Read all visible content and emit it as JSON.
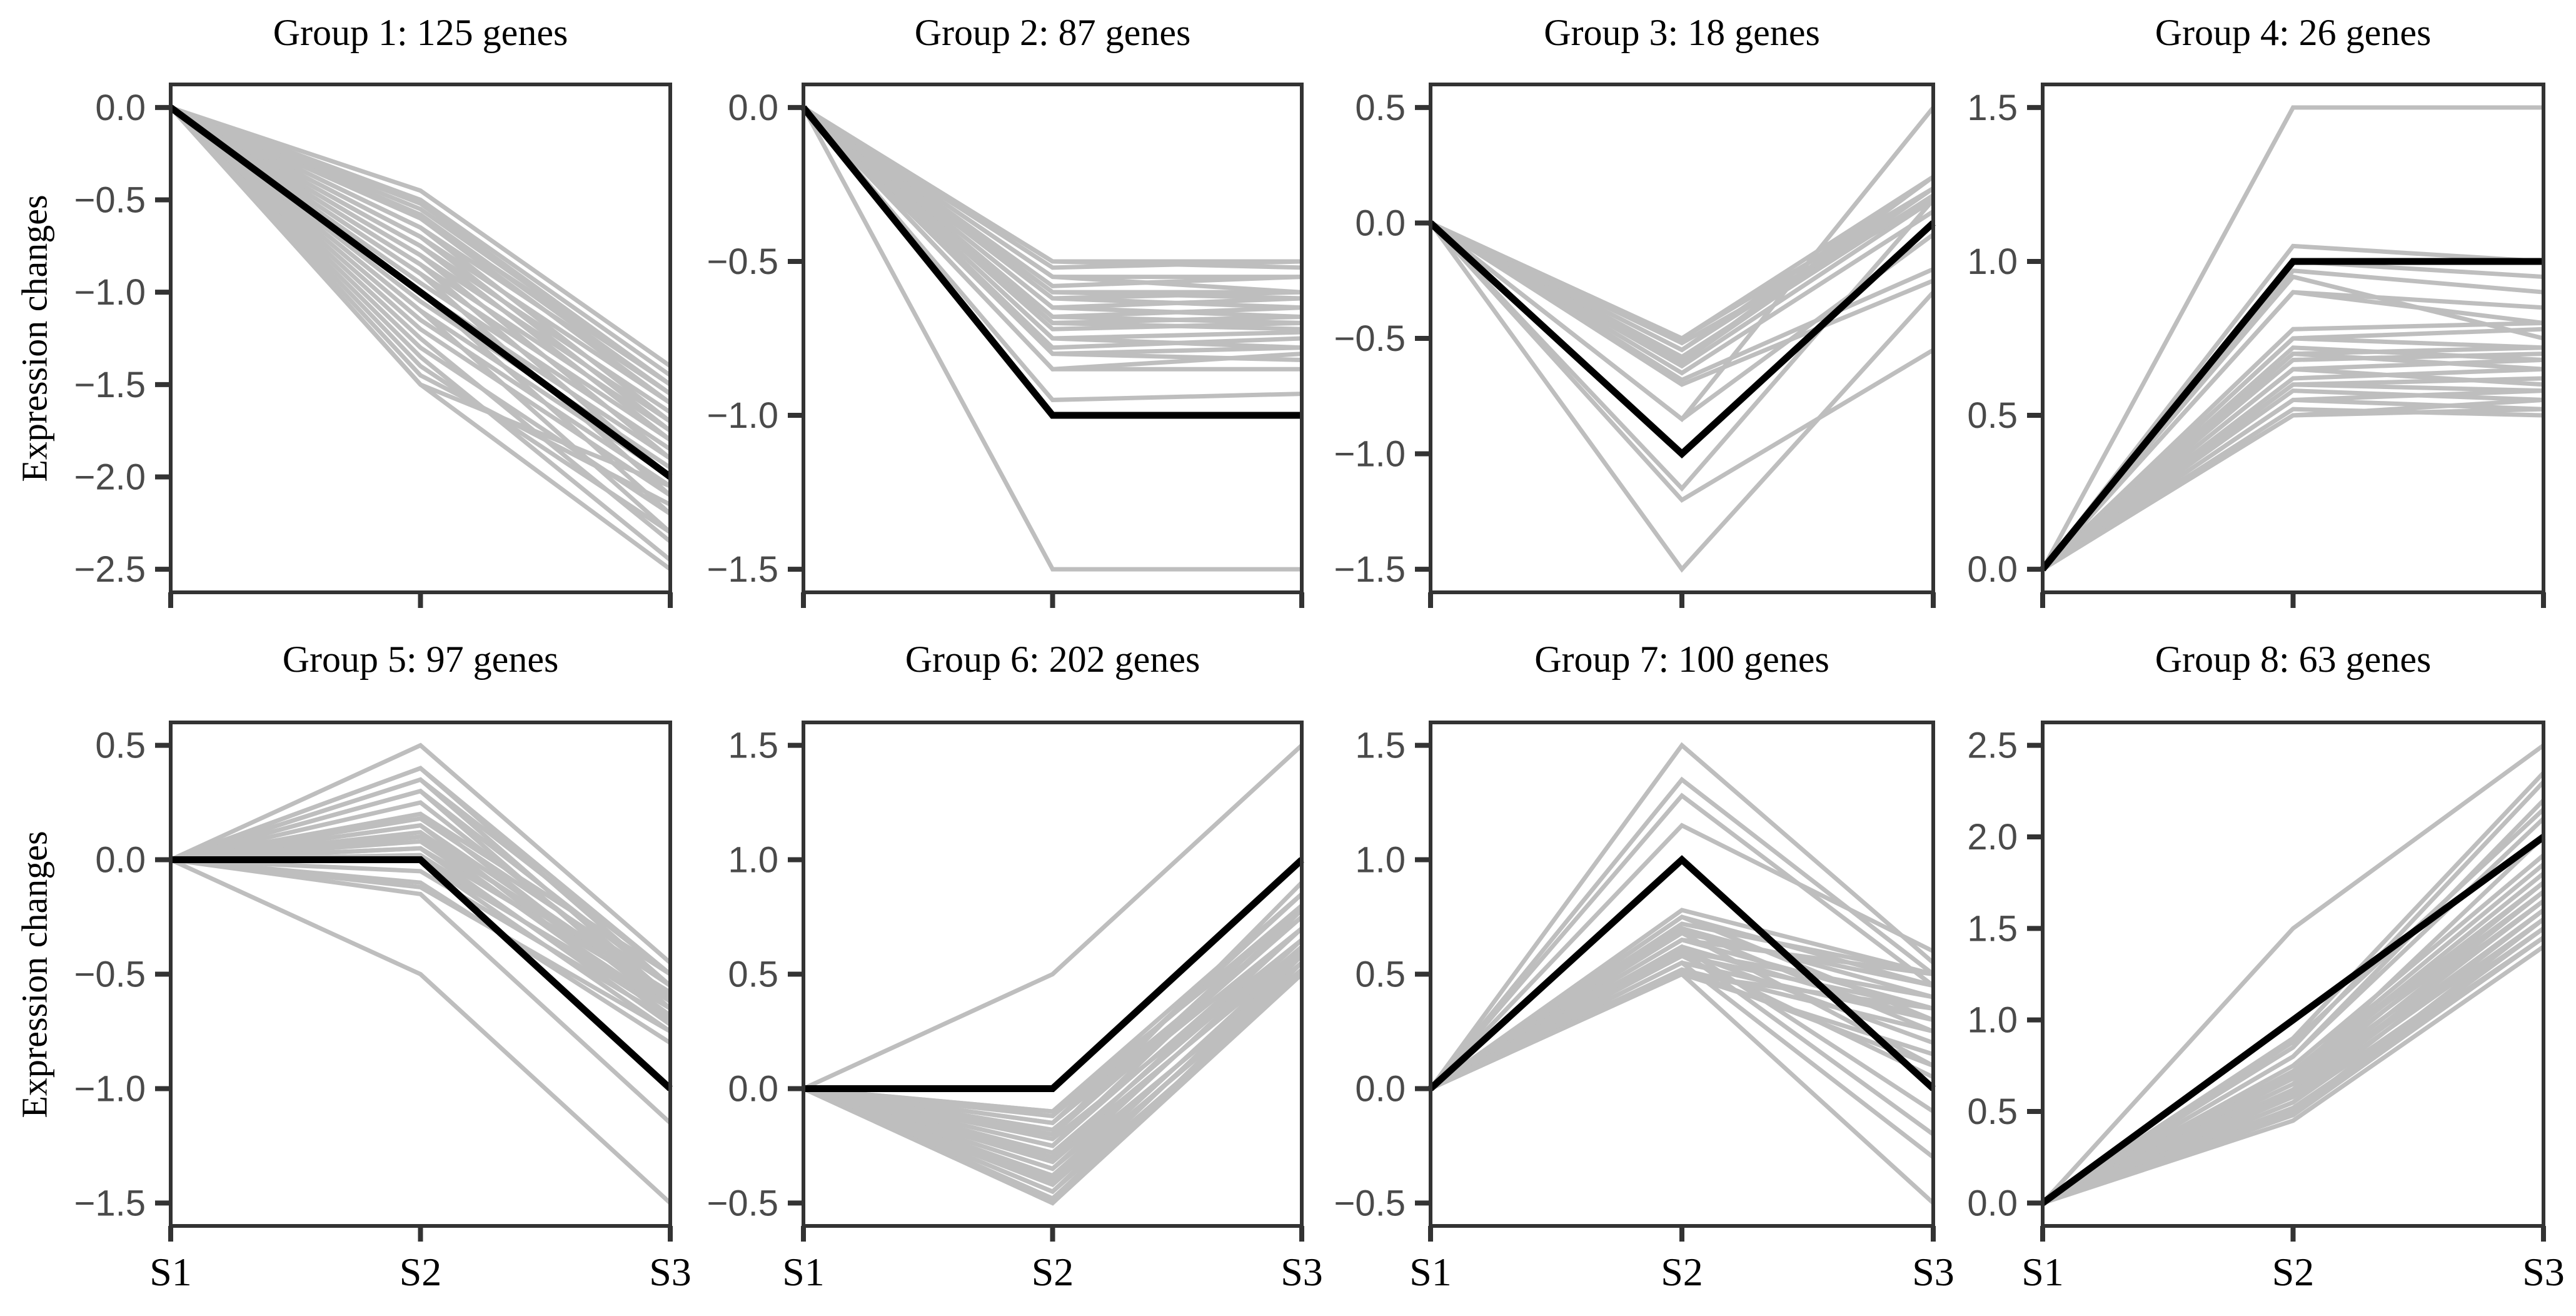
{
  "figure": {
    "y_axis_label": "Expression changes",
    "x_categories": [
      "S1",
      "S2",
      "S3"
    ],
    "colors": {
      "gene_line": "#bebebe",
      "consensus_line": "#000000",
      "axis": "#333333",
      "tick_label": "#4a4a4a",
      "title": "#000000",
      "background": "#ffffff"
    }
  },
  "chart_data": [
    {
      "type": "line",
      "title": "Group 1: 125 genes",
      "group": "Group 1",
      "n_genes": 125,
      "x": [
        "S1",
        "S2",
        "S3"
      ],
      "ylim": [
        -2.625,
        0.125
      ],
      "yticks": [
        0.0,
        -0.5,
        -1.0,
        -1.5,
        -2.0,
        -2.5
      ],
      "consensus": [
        0,
        -1,
        -2
      ],
      "genes": [
        [
          0,
          -0.45,
          -1.4
        ],
        [
          0,
          -0.5,
          -1.45
        ],
        [
          0,
          -0.52,
          -1.5
        ],
        [
          0,
          -0.55,
          -1.5
        ],
        [
          0,
          -0.58,
          -1.55
        ],
        [
          0,
          -0.6,
          -1.5
        ],
        [
          0,
          -0.6,
          -1.6
        ],
        [
          0,
          -0.65,
          -1.55
        ],
        [
          0,
          -0.65,
          -1.7
        ],
        [
          0,
          -0.7,
          -1.6
        ],
        [
          0,
          -0.7,
          -1.75
        ],
        [
          0,
          -0.75,
          -1.65
        ],
        [
          0,
          -0.75,
          -1.8
        ],
        [
          0,
          -0.8,
          -1.7
        ],
        [
          0,
          -0.8,
          -1.9
        ],
        [
          0,
          -0.85,
          -1.75
        ],
        [
          0,
          -0.85,
          -2.0
        ],
        [
          0,
          -0.9,
          -1.8
        ],
        [
          0,
          -0.9,
          -2.1
        ],
        [
          0,
          -0.95,
          -1.85
        ],
        [
          0,
          -1.0,
          -1.9
        ],
        [
          0,
          -1.0,
          -2.2
        ],
        [
          0,
          -1.05,
          -1.95
        ],
        [
          0,
          -1.1,
          -2.0
        ],
        [
          0,
          -1.1,
          -2.3
        ],
        [
          0,
          -1.15,
          -2.05
        ],
        [
          0,
          -1.2,
          -2.1
        ],
        [
          0,
          -1.25,
          -2.35
        ],
        [
          0,
          -1.3,
          -2.2
        ],
        [
          0,
          -1.35,
          -2.45
        ],
        [
          0,
          -1.4,
          -2.3
        ],
        [
          0,
          -1.45,
          -2.15
        ],
        [
          0,
          -1.5,
          -2.5
        ],
        [
          0,
          -1.5,
          -2.05
        ]
      ]
    },
    {
      "type": "line",
      "title": "Group 2: 87 genes",
      "group": "Group 2",
      "n_genes": 87,
      "x": [
        "S1",
        "S2",
        "S3"
      ],
      "ylim": [
        -1.575,
        0.075
      ],
      "yticks": [
        0.0,
        -0.5,
        -1.0,
        -1.5
      ],
      "consensus": [
        0,
        -1,
        -1
      ],
      "genes": [
        [
          0,
          -0.5,
          -0.5
        ],
        [
          0,
          -0.5,
          -0.52
        ],
        [
          0,
          -0.52,
          -0.5
        ],
        [
          0,
          -0.55,
          -0.55
        ],
        [
          0,
          -0.55,
          -0.6
        ],
        [
          0,
          -0.58,
          -0.55
        ],
        [
          0,
          -0.6,
          -0.6
        ],
        [
          0,
          -0.6,
          -0.62
        ],
        [
          0,
          -0.62,
          -0.6
        ],
        [
          0,
          -0.62,
          -0.65
        ],
        [
          0,
          -0.65,
          -0.62
        ],
        [
          0,
          -0.65,
          -0.68
        ],
        [
          0,
          -0.68,
          -0.65
        ],
        [
          0,
          -0.68,
          -0.7
        ],
        [
          0,
          -0.7,
          -0.68
        ],
        [
          0,
          -0.7,
          -0.72
        ],
        [
          0,
          -0.72,
          -0.7
        ],
        [
          0,
          -0.75,
          -0.73
        ],
        [
          0,
          -0.75,
          -0.78
        ],
        [
          0,
          -0.78,
          -0.75
        ],
        [
          0,
          -0.8,
          -0.78
        ],
        [
          0,
          -0.8,
          -0.82
        ],
        [
          0,
          -0.85,
          -0.8
        ],
        [
          0,
          -0.85,
          -0.85
        ],
        [
          0,
          -0.95,
          -0.93
        ],
        [
          0,
          -1.5,
          -1.5
        ]
      ]
    },
    {
      "type": "line",
      "title": "Group 3: 18 genes",
      "group": "Group 3",
      "n_genes": 18,
      "x": [
        "S1",
        "S2",
        "S3"
      ],
      "ylim": [
        -1.6,
        0.6
      ],
      "yticks": [
        0.5,
        0.0,
        -0.5,
        -1.0,
        -1.5
      ],
      "consensus": [
        0,
        -1,
        0
      ],
      "genes": [
        [
          0,
          -0.5,
          0.15
        ],
        [
          0,
          -0.5,
          0.2
        ],
        [
          0,
          -0.52,
          0.1
        ],
        [
          0,
          -0.55,
          0.15
        ],
        [
          0,
          -0.55,
          0.2
        ],
        [
          0,
          -0.58,
          0.12
        ],
        [
          0,
          -0.6,
          0.15
        ],
        [
          0,
          -0.6,
          0.2
        ],
        [
          0,
          -0.62,
          0.1
        ],
        [
          0,
          -0.65,
          0.05
        ],
        [
          0,
          -0.68,
          -0.2
        ],
        [
          0,
          -0.7,
          -0.25
        ],
        [
          0,
          -0.85,
          0.5
        ],
        [
          0,
          -0.85,
          -0.05
        ],
        [
          0,
          -1.15,
          0.1
        ],
        [
          0,
          -1.2,
          -0.55
        ],
        [
          0,
          -1.5,
          -0.3
        ]
      ]
    },
    {
      "type": "line",
      "title": "Group 4: 26 genes",
      "group": "Group 4",
      "n_genes": 26,
      "x": [
        "S1",
        "S2",
        "S3"
      ],
      "ylim": [
        -0.075,
        1.575
      ],
      "yticks": [
        0.0,
        0.5,
        1.0,
        1.5
      ],
      "consensus": [
        0,
        1,
        1
      ],
      "genes": [
        [
          0,
          1.05,
          1.0
        ],
        [
          0,
          1.0,
          0.95
        ],
        [
          0,
          0.97,
          0.9
        ],
        [
          0,
          0.95,
          0.75
        ],
        [
          0,
          0.9,
          0.85
        ],
        [
          0,
          0.9,
          0.8
        ],
        [
          0,
          0.78,
          0.8
        ],
        [
          0,
          0.75,
          0.72
        ],
        [
          0,
          0.75,
          0.78
        ],
        [
          0,
          0.72,
          0.68
        ],
        [
          0,
          0.7,
          0.65
        ],
        [
          0,
          0.7,
          0.72
        ],
        [
          0,
          0.68,
          0.7
        ],
        [
          0,
          0.65,
          0.6
        ],
        [
          0,
          0.65,
          0.68
        ],
        [
          0,
          0.62,
          0.65
        ],
        [
          0,
          0.6,
          0.58
        ],
        [
          0,
          0.6,
          0.62
        ],
        [
          0,
          0.58,
          0.55
        ],
        [
          0,
          0.55,
          0.52
        ],
        [
          0,
          0.55,
          0.58
        ],
        [
          0,
          0.52,
          0.5
        ],
        [
          0,
          0.5,
          0.52
        ],
        [
          0,
          0.5,
          0.55
        ],
        [
          0,
          1.5,
          1.5
        ]
      ]
    },
    {
      "type": "line",
      "title": "Group 5: 97 genes",
      "group": "Group 5",
      "n_genes": 97,
      "x": [
        "S1",
        "S2",
        "S3"
      ],
      "ylim": [
        -1.6,
        0.6
      ],
      "yticks": [
        0.5,
        0.0,
        -0.5,
        -1.0,
        -1.5
      ],
      "consensus": [
        0,
        0,
        -1
      ],
      "genes": [
        [
          0,
          0.5,
          -0.45
        ],
        [
          0,
          0.4,
          -0.5
        ],
        [
          0,
          0.4,
          -0.55
        ],
        [
          0,
          0.35,
          -0.5
        ],
        [
          0,
          0.35,
          -0.6
        ],
        [
          0,
          0.3,
          -0.55
        ],
        [
          0,
          0.3,
          -0.65
        ],
        [
          0,
          0.25,
          -0.6
        ],
        [
          0,
          0.2,
          -0.5
        ],
        [
          0,
          0.2,
          -0.65
        ],
        [
          0,
          0.18,
          -0.55
        ],
        [
          0,
          0.15,
          -0.6
        ],
        [
          0,
          0.15,
          -0.7
        ],
        [
          0,
          0.12,
          -0.62
        ],
        [
          0,
          0.1,
          -0.58
        ],
        [
          0,
          0.1,
          -0.68
        ],
        [
          0,
          0.08,
          -0.65
        ],
        [
          0,
          0.05,
          -0.6
        ],
        [
          0,
          0.05,
          -0.72
        ],
        [
          0,
          0.02,
          -0.68
        ],
        [
          0,
          0.0,
          -0.65
        ],
        [
          0,
          0.0,
          -0.75
        ],
        [
          0,
          -0.05,
          -0.7
        ],
        [
          0,
          -0.1,
          -0.8
        ],
        [
          0,
          -0.12,
          -0.75
        ],
        [
          0,
          -0.15,
          -1.15
        ],
        [
          0,
          -0.5,
          -1.5
        ]
      ]
    },
    {
      "type": "line",
      "title": "Group 6: 202 genes",
      "group": "Group 6",
      "n_genes": 202,
      "x": [
        "S1",
        "S2",
        "S3"
      ],
      "ylim": [
        -0.6,
        1.6
      ],
      "yticks": [
        1.5,
        1.0,
        0.5,
        0.0,
        -0.5
      ],
      "consensus": [
        0,
        0,
        1
      ],
      "genes": [
        [
          0,
          0.5,
          1.5
        ],
        [
          0,
          -0.1,
          0.85
        ],
        [
          0,
          -0.12,
          0.8
        ],
        [
          0,
          -0.15,
          0.75
        ],
        [
          0,
          -0.15,
          0.85
        ],
        [
          0,
          -0.18,
          0.7
        ],
        [
          0,
          -0.2,
          0.75
        ],
        [
          0,
          -0.2,
          0.8
        ],
        [
          0,
          -0.22,
          0.65
        ],
        [
          0,
          -0.25,
          0.7
        ],
        [
          0,
          -0.25,
          0.78
        ],
        [
          0,
          -0.28,
          0.65
        ],
        [
          0,
          -0.3,
          0.6
        ],
        [
          0,
          -0.3,
          0.7
        ],
        [
          0,
          -0.32,
          0.62
        ],
        [
          0,
          -0.35,
          0.55
        ],
        [
          0,
          -0.35,
          0.65
        ],
        [
          0,
          -0.38,
          0.58
        ],
        [
          0,
          -0.4,
          0.52
        ],
        [
          0,
          -0.4,
          0.6
        ],
        [
          0,
          -0.42,
          0.55
        ],
        [
          0,
          -0.45,
          0.5
        ],
        [
          0,
          -0.45,
          0.58
        ],
        [
          0,
          -0.48,
          0.52
        ],
        [
          0,
          -0.5,
          0.5
        ],
        [
          0,
          -0.5,
          0.55
        ],
        [
          0,
          -0.2,
          0.9
        ],
        [
          0,
          -0.1,
          0.78
        ]
      ]
    },
    {
      "type": "line",
      "title": "Group 7: 100 genes",
      "group": "Group 7",
      "n_genes": 100,
      "x": [
        "S1",
        "S2",
        "S3"
      ],
      "ylim": [
        -0.6,
        1.6
      ],
      "yticks": [
        1.5,
        1.0,
        0.5,
        0.0,
        -0.5
      ],
      "consensus": [
        0,
        1,
        0
      ],
      "genes": [
        [
          0,
          1.5,
          0.55
        ],
        [
          0,
          1.35,
          0.5
        ],
        [
          0,
          1.28,
          0.45
        ],
        [
          0,
          1.15,
          0.6
        ],
        [
          0,
          0.78,
          0.5
        ],
        [
          0,
          0.75,
          0.45
        ],
        [
          0,
          0.75,
          0.3
        ],
        [
          0,
          0.72,
          0.5
        ],
        [
          0,
          0.7,
          0.4
        ],
        [
          0,
          0.7,
          0.25
        ],
        [
          0,
          0.68,
          0.45
        ],
        [
          0,
          0.68,
          0.1
        ],
        [
          0,
          0.65,
          0.35
        ],
        [
          0,
          0.65,
          0.5
        ],
        [
          0,
          0.62,
          0.3
        ],
        [
          0,
          0.62,
          -0.1
        ],
        [
          0,
          0.6,
          0.4
        ],
        [
          0,
          0.6,
          0.2
        ],
        [
          0,
          0.6,
          -0.2
        ],
        [
          0,
          0.58,
          0.35
        ],
        [
          0,
          0.58,
          0.05
        ],
        [
          0,
          0.55,
          0.3
        ],
        [
          0,
          0.55,
          -0.3
        ],
        [
          0,
          0.52,
          0.25
        ],
        [
          0,
          0.52,
          0.1
        ],
        [
          0,
          0.5,
          0.35
        ],
        [
          0,
          0.5,
          -0.5
        ],
        [
          0,
          0.5,
          0.15
        ]
      ]
    },
    {
      "type": "line",
      "title": "Group 8: 63 genes",
      "group": "Group 8",
      "n_genes": 63,
      "x": [
        "S1",
        "S2",
        "S3"
      ],
      "ylim": [
        -0.125,
        2.625
      ],
      "yticks": [
        0.0,
        0.5,
        1.0,
        1.5,
        2.0,
        2.5
      ],
      "consensus": [
        0,
        1,
        2
      ],
      "genes": [
        [
          0,
          1.5,
          2.5
        ],
        [
          0,
          0.9,
          2.35
        ],
        [
          0,
          0.85,
          2.3
        ],
        [
          0,
          0.88,
          2.15
        ],
        [
          0,
          0.8,
          2.2
        ],
        [
          0,
          0.8,
          2.1
        ],
        [
          0,
          0.75,
          1.9
        ],
        [
          0,
          0.72,
          1.85
        ],
        [
          0,
          0.7,
          2.0
        ],
        [
          0,
          0.7,
          1.8
        ],
        [
          0,
          0.7,
          1.75
        ],
        [
          0,
          0.68,
          1.7
        ],
        [
          0,
          0.65,
          1.75
        ],
        [
          0,
          0.65,
          1.65
        ],
        [
          0,
          0.62,
          1.7
        ],
        [
          0,
          0.6,
          1.6
        ],
        [
          0,
          0.6,
          1.65
        ],
        [
          0,
          0.58,
          1.55
        ],
        [
          0,
          0.55,
          1.5
        ],
        [
          0,
          0.55,
          1.6
        ],
        [
          0,
          0.52,
          1.45
        ],
        [
          0,
          0.5,
          1.5
        ],
        [
          0,
          0.5,
          1.55
        ],
        [
          0,
          0.48,
          1.45
        ],
        [
          0,
          0.45,
          1.4
        ]
      ]
    }
  ]
}
